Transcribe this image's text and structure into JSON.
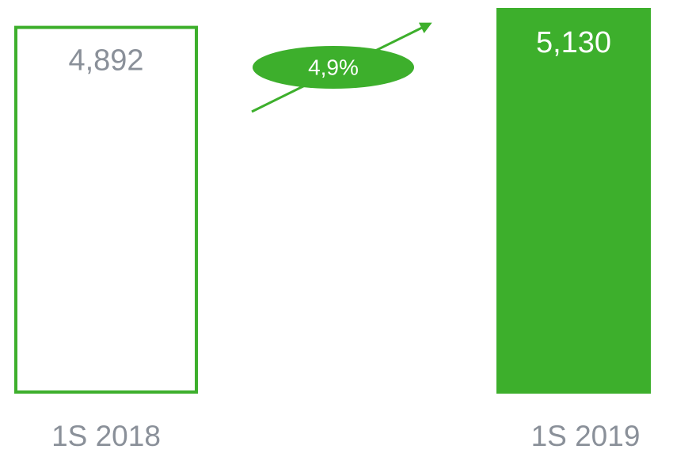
{
  "chart_data": {
    "type": "bar",
    "categories": [
      "1S 2018",
      "1S 2019"
    ],
    "values": [
      4892,
      5130
    ],
    "value_labels": [
      "4,892",
      "5,130"
    ],
    "colors": [
      "#3daf2c",
      "#3daf2c"
    ],
    "bar_styles": [
      "outline",
      "solid"
    ],
    "annotation": "4,9%"
  }
}
